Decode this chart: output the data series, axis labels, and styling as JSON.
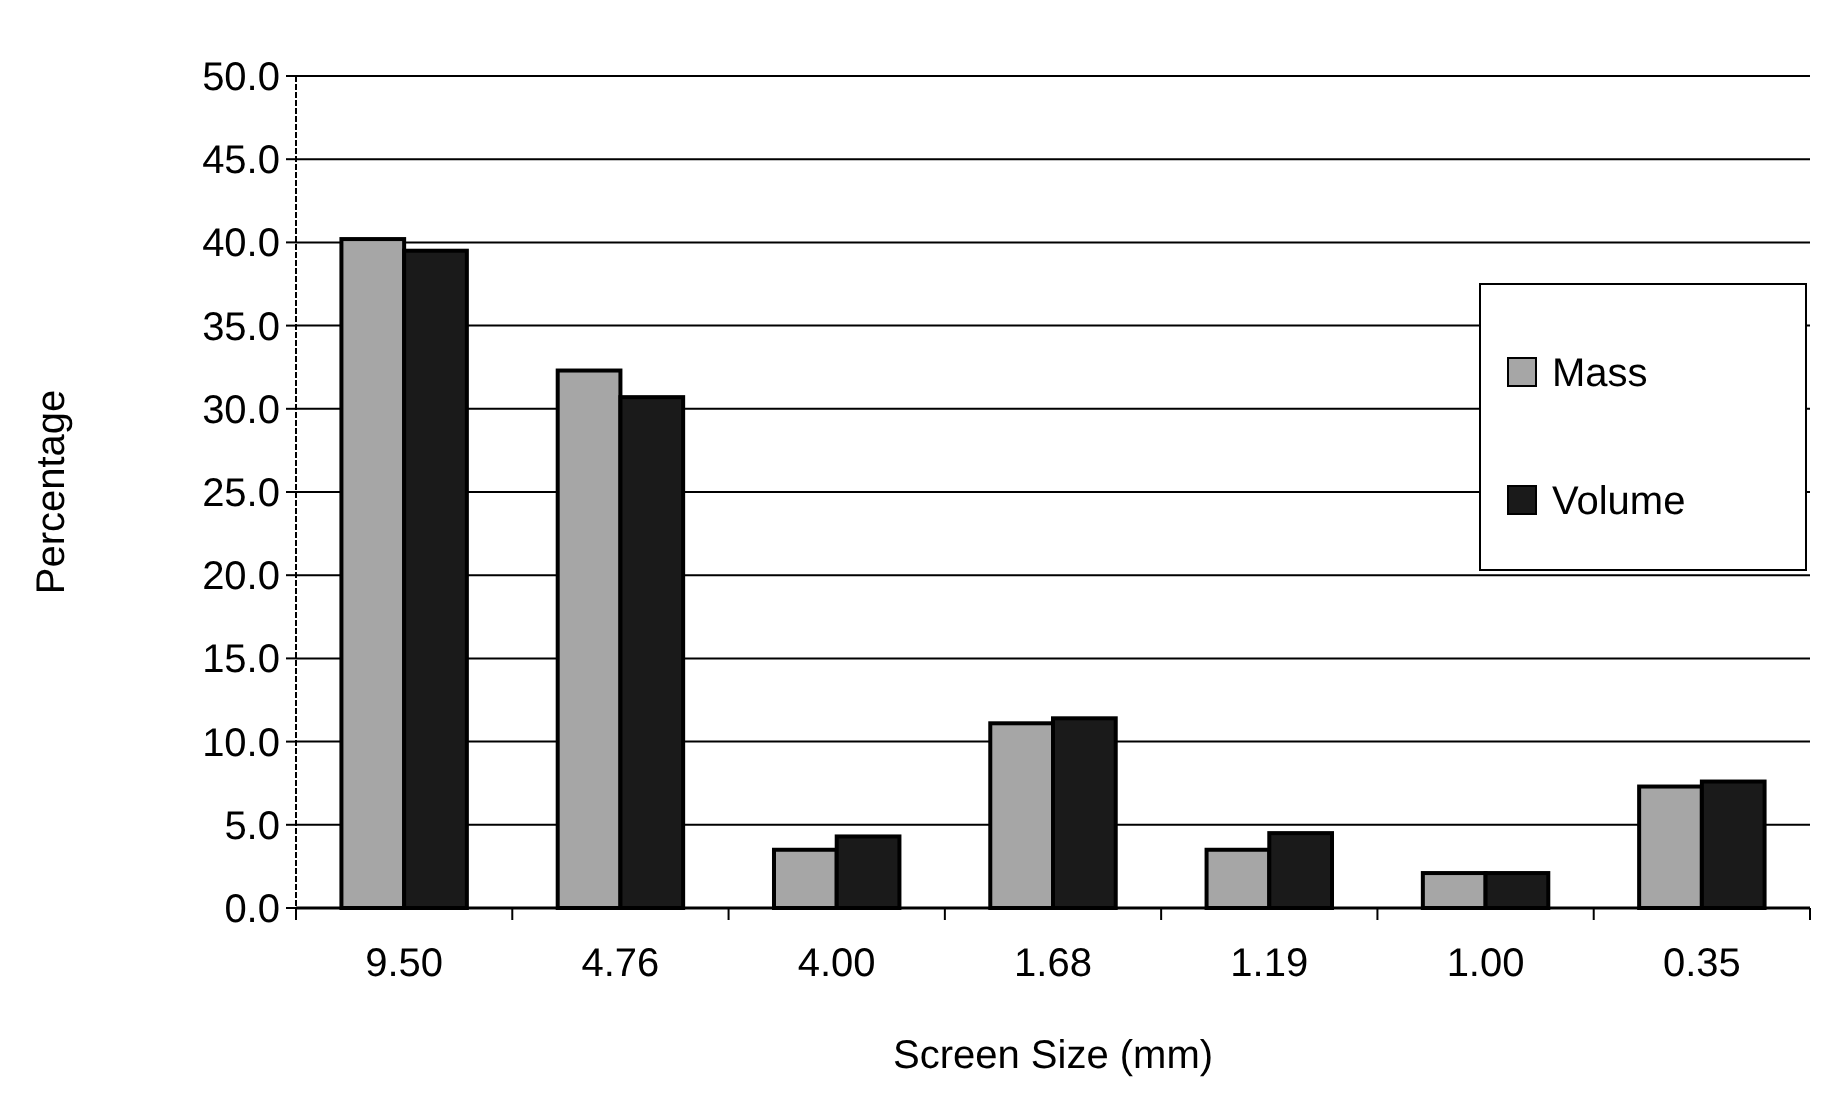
{
  "chart_data": {
    "type": "bar",
    "xlabel": "Screen Size (mm)",
    "ylabel": "Percentage",
    "categories": [
      "9.50",
      "4.76",
      "4.00",
      "1.68",
      "1.19",
      "1.00",
      "0.35"
    ],
    "series": [
      {
        "name": "Mass",
        "color": "#a6a6a6",
        "values": [
          40.2,
          32.3,
          3.5,
          11.1,
          3.5,
          2.1,
          7.3
        ]
      },
      {
        "name": "Volume",
        "color": "#1a1a1a",
        "values": [
          39.5,
          30.7,
          4.3,
          11.4,
          4.5,
          2.1,
          7.6
        ]
      }
    ],
    "ylim": [
      0,
      50
    ],
    "yticks": [
      {
        "value": 0,
        "label": "0.0"
      },
      {
        "value": 5,
        "label": "5.0"
      },
      {
        "value": 10,
        "label": "10.0"
      },
      {
        "value": 15,
        "label": "15.0"
      },
      {
        "value": 20,
        "label": "20.0"
      },
      {
        "value": 25,
        "label": "25.0"
      },
      {
        "value": 30,
        "label": "30.0"
      },
      {
        "value": 35,
        "label": "35.0"
      },
      {
        "value": 40,
        "label": "40.0"
      },
      {
        "value": 45,
        "label": "45.0"
      },
      {
        "value": 50,
        "label": "50.0"
      }
    ],
    "grid": "y",
    "legend": "right"
  }
}
